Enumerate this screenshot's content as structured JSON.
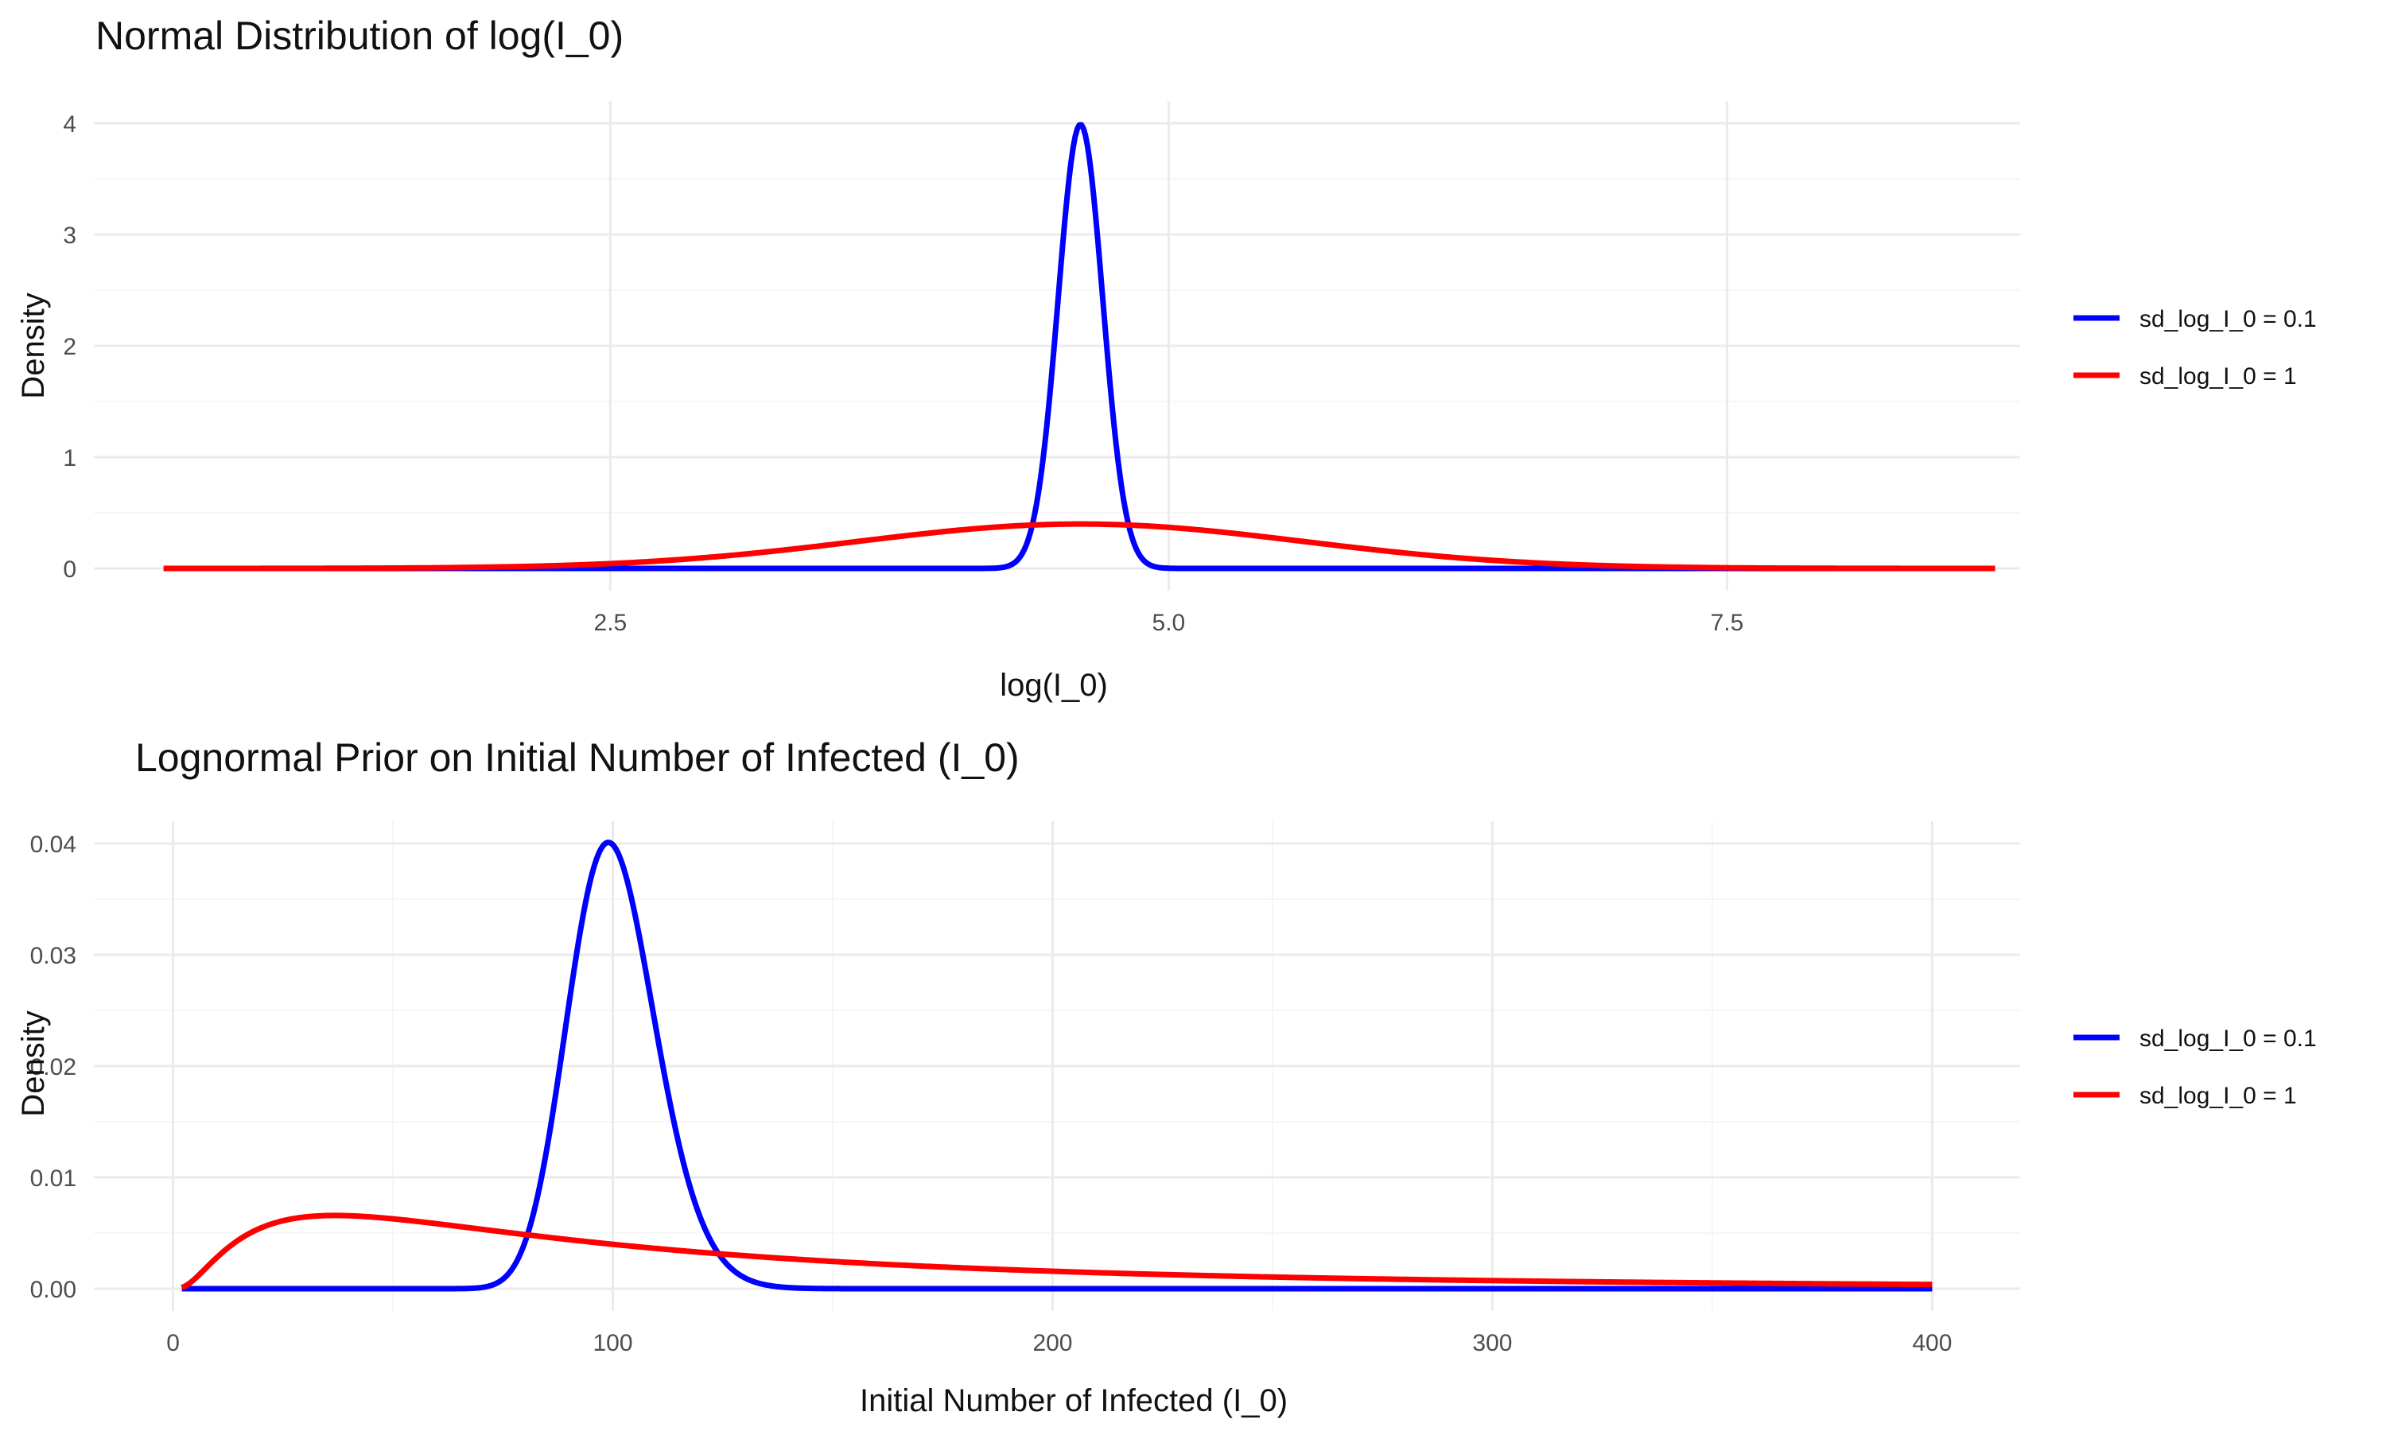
{
  "chart_data": [
    {
      "type": "line",
      "title": "Normal Distribution of log(I_0)",
      "xlabel": "log(I_0)",
      "ylabel": "Density",
      "xlim": [
        0.5,
        8.7
      ],
      "ylim": [
        0,
        4
      ],
      "x_ticks": [
        2.5,
        5.0,
        7.5
      ],
      "x_tick_labels": [
        "2.5",
        "5.0",
        "7.5"
      ],
      "y_ticks": [
        0,
        1,
        2,
        3,
        4
      ],
      "y_tick_labels": [
        "0",
        "1",
        "2",
        "3",
        "4"
      ],
      "grid": true,
      "legend_position": "right",
      "series": [
        {
          "name": "sd_log_I_0 = 0.1",
          "color": "#0000ff",
          "distribution": "normal",
          "mean": 4.605,
          "sd": 0.1
        },
        {
          "name": "sd_log_I_0 = 1",
          "color": "#ff0000",
          "distribution": "normal",
          "mean": 4.605,
          "sd": 1
        }
      ]
    },
    {
      "type": "line",
      "title": "Lognormal Prior on Initial Number of Infected (I_0)",
      "xlabel": "Initial Number of Infected (I_0)",
      "ylabel": "Density",
      "xlim": [
        2,
        400
      ],
      "ylim": [
        0,
        0.04
      ],
      "x_ticks": [
        0,
        100,
        200,
        300,
        400
      ],
      "x_tick_labels": [
        "0",
        "100",
        "200",
        "300",
        "400"
      ],
      "y_ticks": [
        0,
        0.01,
        0.02,
        0.03,
        0.04
      ],
      "y_tick_labels": [
        "0.00",
        "0.01",
        "0.02",
        "0.03",
        "0.04"
      ],
      "grid": true,
      "legend_position": "right",
      "series": [
        {
          "name": "sd_log_I_0 = 0.1",
          "color": "#0000ff",
          "distribution": "lognormal",
          "meanlog": 4.605,
          "sdlog": 0.1
        },
        {
          "name": "sd_log_I_0 = 1",
          "color": "#ff0000",
          "distribution": "lognormal",
          "meanlog": 4.605,
          "sdlog": 1
        }
      ]
    }
  ]
}
